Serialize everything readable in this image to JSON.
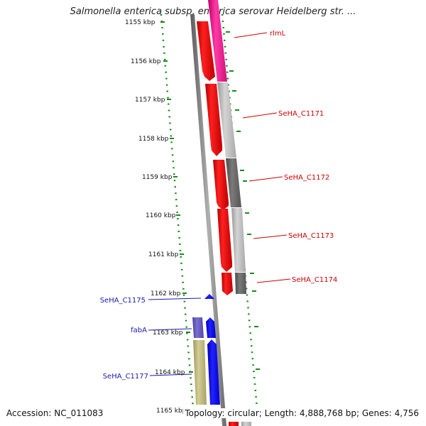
{
  "title": "Salmonella enterica subsp. enterica serovar Heidelberg str. ...",
  "footer": {
    "accession": "Accession: NC_011083",
    "summary": "Topology: circular; Length: 4,888,768 bp; Genes: 4,756"
  },
  "axis_ticks": [
    "1155 kbp",
    "1156 kbp",
    "1157 kbp",
    "1158 kbp",
    "1159 kbp",
    "1160 kbp",
    "1161 kbp",
    "1162 kbp",
    "1163 kbp",
    "1164 kbp",
    "1165 kbp"
  ],
  "genes": [
    {
      "label": "rlmL",
      "color": "#cc0000"
    },
    {
      "label": "SeHA_C1171",
      "color": "#cc0000"
    },
    {
      "label": "SeHA_C1172",
      "color": "#cc0000"
    },
    {
      "label": "SeHA_C1173",
      "color": "#cc0000"
    },
    {
      "label": "SeHA_C1174",
      "color": "#cc0000"
    },
    {
      "label": "SeHA_C1175",
      "color": "#1a1aa8"
    },
    {
      "label": "fabA",
      "color": "#1a1aa8"
    },
    {
      "label": "SeHA_C1177",
      "color": "#1a1aa8"
    }
  ],
  "colors": {
    "forward_cds": "#ff0000",
    "reverse_cds": "#0000ff",
    "dot_track": "#1a8a1a",
    "backbone": "#808080"
  }
}
